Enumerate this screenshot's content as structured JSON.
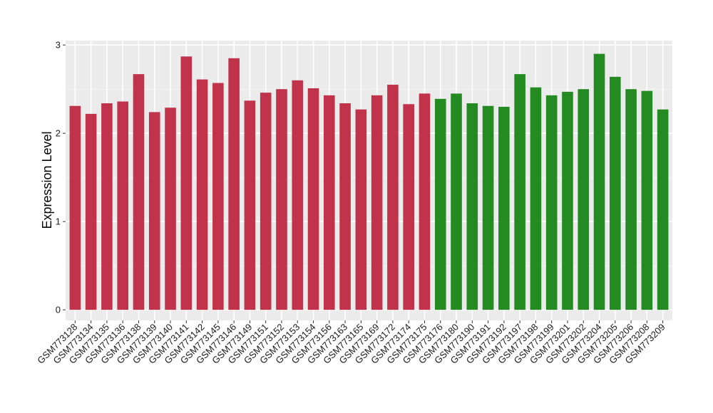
{
  "chart_data": {
    "type": "bar",
    "title": "",
    "xlabel": "",
    "ylabel": "Expression Level",
    "ylim": [
      -0.12,
      3.05
    ],
    "yticks": [
      0,
      1,
      2,
      3
    ],
    "grid": true,
    "panel_background": "#ebebeb",
    "group_colors": {
      "group1": "#c0334a",
      "group2": "#238b22"
    },
    "categories": [
      "GSM773128",
      "GSM773134",
      "GSM773135",
      "GSM773136",
      "GSM773138",
      "GSM773139",
      "GSM773140",
      "GSM773141",
      "GSM773142",
      "GSM773145",
      "GSM773146",
      "GSM773149",
      "GSM773151",
      "GSM773152",
      "GSM773153",
      "GSM773154",
      "GSM773156",
      "GSM773163",
      "GSM773165",
      "GSM773169",
      "GSM773172",
      "GSM773174",
      "GSM773175",
      "GSM773176",
      "GSM773180",
      "GSM773190",
      "GSM773191",
      "GSM773192",
      "GSM773197",
      "GSM773198",
      "GSM773199",
      "GSM773201",
      "GSM773202",
      "GSM773204",
      "GSM773205",
      "GSM773206",
      "GSM773208",
      "GSM773209"
    ],
    "values": [
      2.31,
      2.22,
      2.34,
      2.36,
      2.67,
      2.24,
      2.29,
      2.87,
      2.61,
      2.57,
      2.85,
      2.37,
      2.46,
      2.5,
      2.6,
      2.51,
      2.43,
      2.34,
      2.27,
      2.43,
      2.55,
      2.33,
      2.45,
      2.39,
      2.45,
      2.34,
      2.31,
      2.3,
      2.67,
      2.52,
      2.43,
      2.47,
      2.5,
      2.9,
      2.64,
      2.5,
      2.48,
      2.27
    ],
    "groups": [
      "group1",
      "group1",
      "group1",
      "group1",
      "group1",
      "group1",
      "group1",
      "group1",
      "group1",
      "group1",
      "group1",
      "group1",
      "group1",
      "group1",
      "group1",
      "group1",
      "group1",
      "group1",
      "group1",
      "group1",
      "group1",
      "group1",
      "group1",
      "group2",
      "group2",
      "group2",
      "group2",
      "group2",
      "group2",
      "group2",
      "group2",
      "group2",
      "group2",
      "group2",
      "group2",
      "group2",
      "group2",
      "group2"
    ]
  }
}
